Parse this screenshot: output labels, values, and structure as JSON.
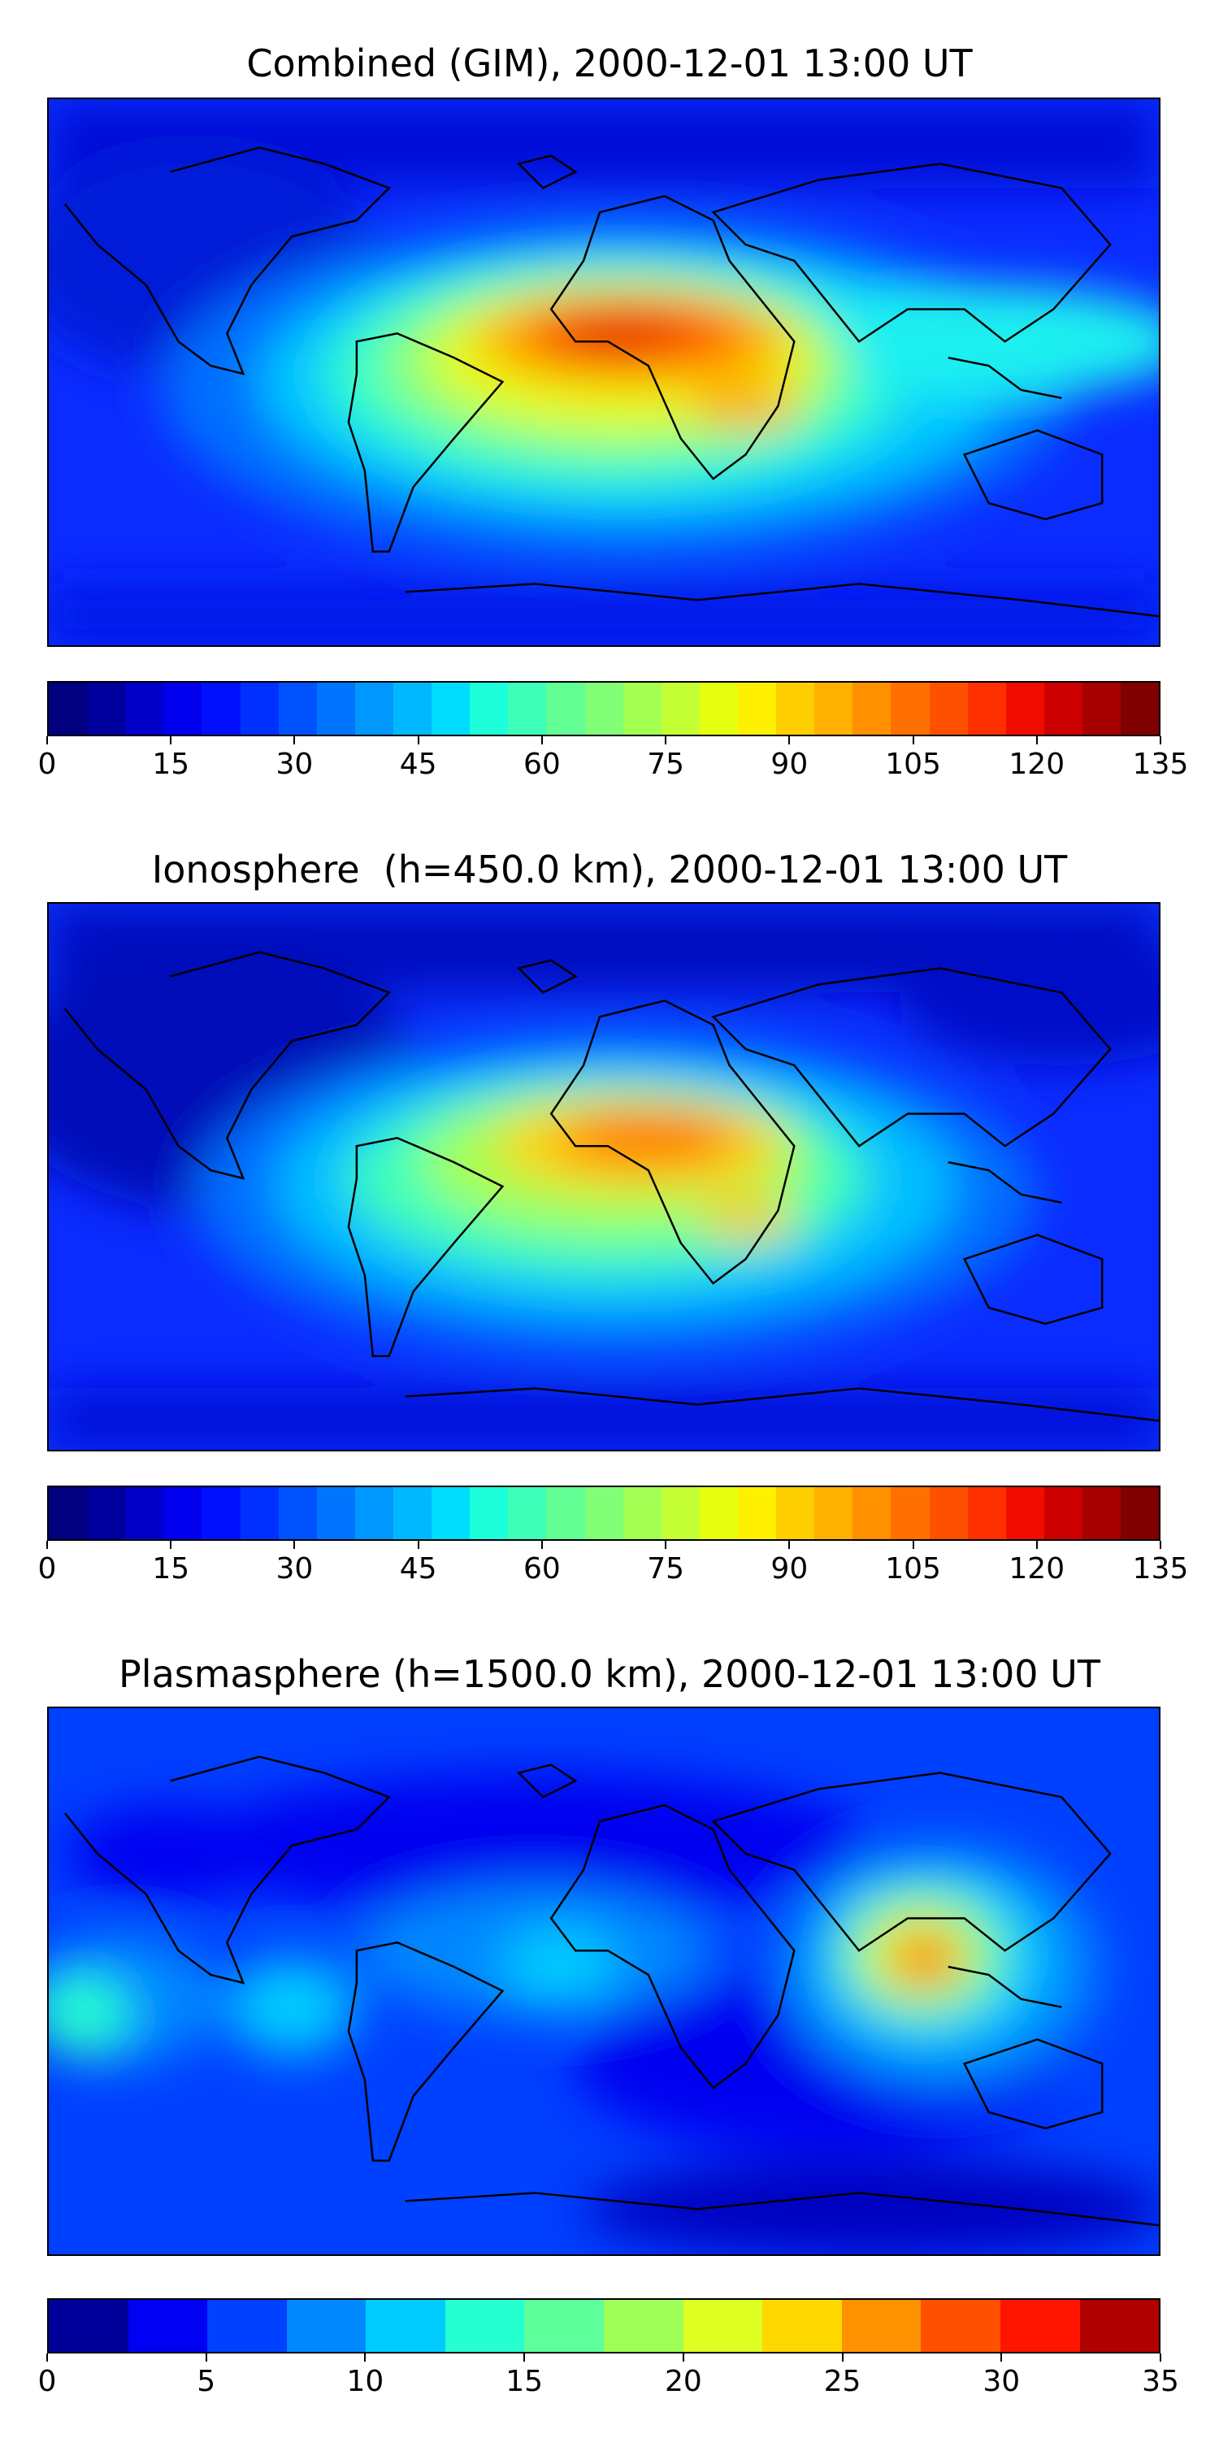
{
  "panels": [
    {
      "title": "Combined (GIM), 2000-12-01 13:00 UT",
      "colorbar": {
        "ticks": [
          "0",
          "15",
          "30",
          "45",
          "60",
          "75",
          "90",
          "105",
          "120",
          "135"
        ],
        "colors": [
          "#000080",
          "#00009f",
          "#0000c8",
          "#0000ee",
          "#0010ff",
          "#0030ff",
          "#0052ff",
          "#0074ff",
          "#0098ff",
          "#00b8ff",
          "#00dcfe",
          "#1cffda",
          "#3effb8",
          "#62ff94",
          "#80ff77",
          "#a4ff53",
          "#c4ff33",
          "#e6ff10",
          "#fff000",
          "#ffce00",
          "#ffb000",
          "#ff9000",
          "#ff7000",
          "#ff5000",
          "#ff3000",
          "#f00d00",
          "#cc0000",
          "#a60000",
          "#800000"
        ]
      }
    },
    {
      "title": "Ionosphere  (h=450.0 km), 2000-12-01 13:00 UT",
      "colorbar": {
        "ticks": [
          "0",
          "15",
          "30",
          "45",
          "60",
          "75",
          "90",
          "105",
          "120",
          "135"
        ],
        "colors": [
          "#000080",
          "#00009f",
          "#0000c8",
          "#0000ee",
          "#0010ff",
          "#0030ff",
          "#0052ff",
          "#0074ff",
          "#0098ff",
          "#00b8ff",
          "#00dcfe",
          "#1cffda",
          "#3effb8",
          "#62ff94",
          "#80ff77",
          "#a4ff53",
          "#c4ff33",
          "#e6ff10",
          "#fff000",
          "#ffce00",
          "#ffb000",
          "#ff9000",
          "#ff7000",
          "#ff5000",
          "#ff3000",
          "#f00d00",
          "#cc0000",
          "#a60000",
          "#800000"
        ]
      }
    },
    {
      "title": "Plasmasphere (h=1500.0 km), 2000-12-01 13:00 UT",
      "colorbar": {
        "ticks": [
          "0",
          "5",
          "10",
          "15",
          "20",
          "25",
          "30",
          "35"
        ],
        "colors": [
          "#00009a",
          "#0000f2",
          "#0040ff",
          "#0088ff",
          "#00ccff",
          "#26ffd0",
          "#5cff9a",
          "#a0ff56",
          "#ddff22",
          "#ffd800",
          "#ff9200",
          "#ff5000",
          "#ff1400",
          "#b00000"
        ]
      }
    }
  ]
}
